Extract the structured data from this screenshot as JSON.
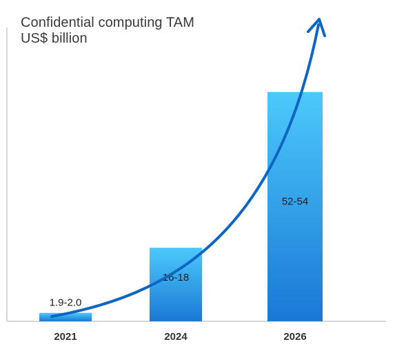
{
  "colors": {
    "bar_top": "#4cc9fb",
    "bar_bottom": "#1a78d6",
    "arrow": "#0f66c2",
    "axis": "#c8c8c8"
  },
  "chart_data": {
    "type": "bar",
    "title": "Confidential computing TAM",
    "subtitle": "US$ billion",
    "categories": [
      "2021",
      "2024",
      "2026"
    ],
    "values": [
      1.95,
      17,
      53
    ],
    "value_labels": [
      "1.9-2.0",
      "16-18",
      "52-54"
    ],
    "ylim": [
      0,
      66
    ],
    "grid": false,
    "legend": "none",
    "overlay": "upward growth arrow"
  }
}
